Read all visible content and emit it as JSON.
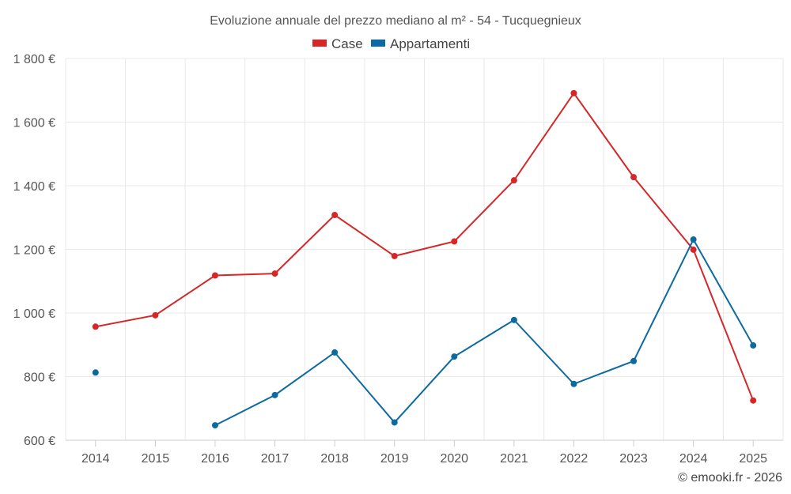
{
  "chart_data": {
    "type": "line",
    "title": "Evoluzione annuale del prezzo mediano al m² - 54 - Tucquegnieux",
    "categories": [
      "2014",
      "2015",
      "2016",
      "2017",
      "2018",
      "2019",
      "2020",
      "2021",
      "2022",
      "2023",
      "2024",
      "2025"
    ],
    "ylim": [
      600,
      1800
    ],
    "yticks": [
      600,
      800,
      1000,
      1200,
      1400,
      1600,
      1800
    ],
    "ytick_labels": [
      "600 €",
      "800 €",
      "1 000 €",
      "1 200 €",
      "1 400 €",
      "1 600 €",
      "1 800 €"
    ],
    "legend_position": "top-center",
    "grid": true,
    "series": [
      {
        "name": "Case",
        "color": "#d62728",
        "values": [
          957,
          993,
          1118,
          1124,
          1308,
          1179,
          1225,
          1417,
          1691,
          1427,
          1199,
          725
        ]
      },
      {
        "name": "Appartamenti",
        "color": "#0d6aa0",
        "values": [
          813,
          null,
          647,
          742,
          876,
          656,
          863,
          978,
          777,
          849,
          1231,
          898
        ]
      }
    ],
    "credit": "© emooki.fr - 2026"
  }
}
